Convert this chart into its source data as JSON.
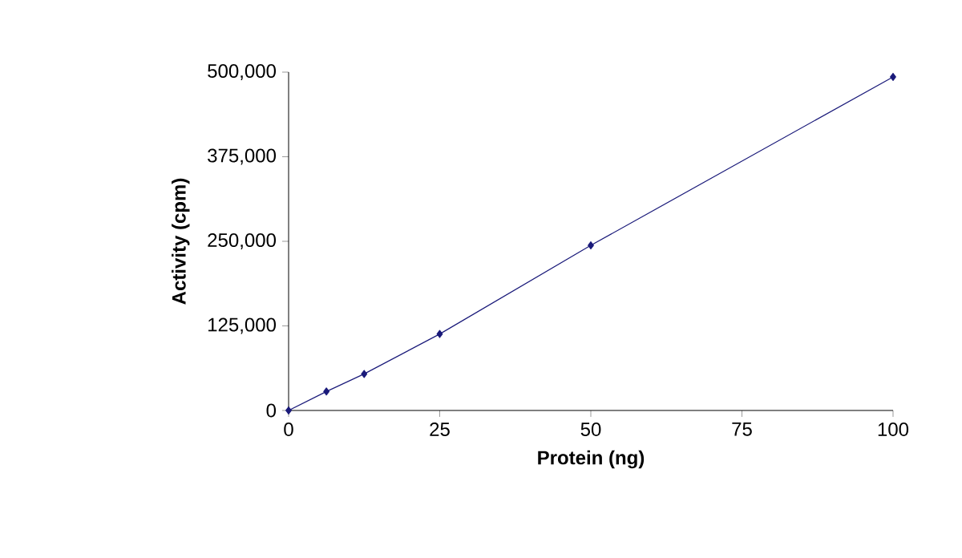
{
  "chart_data": {
    "type": "line",
    "xlabel": "Protein (ng)",
    "ylabel": "Activity (cpm)",
    "x": [
      0,
      6.25,
      12.5,
      25,
      50,
      100
    ],
    "series": [
      {
        "color": "#1a1a7a",
        "values": [
          0,
          28000,
          54000,
          113000,
          244000,
          493000
        ]
      }
    ],
    "xlim": [
      0,
      100
    ],
    "ylim": [
      0,
      500000
    ],
    "xticks": [
      0,
      25,
      50,
      75,
      100
    ],
    "yticks": [
      {
        "value": 0,
        "label": "0"
      },
      {
        "value": 125000,
        "label": "125,000"
      },
      {
        "value": 250000,
        "label": "250,000"
      },
      {
        "value": 375000,
        "label": "375,000"
      },
      {
        "value": 500000,
        "label": "500,000"
      }
    ],
    "marker": "diamond",
    "line_style": "solid"
  }
}
